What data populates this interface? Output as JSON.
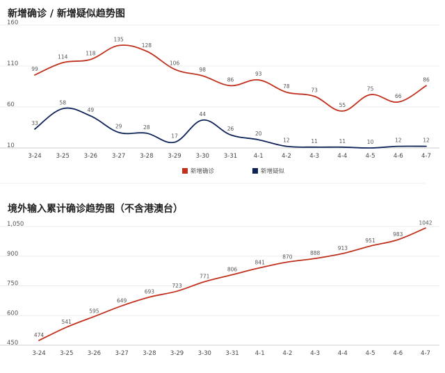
{
  "titles": {
    "chart1": "新增确诊 / 新增疑似趋势图",
    "chart2": "境外输入累计确诊趋势图（不含港澳台）"
  },
  "chart_data": [
    {
      "type": "line",
      "title": "新增确诊 / 新增疑似趋势图",
      "categories": [
        "3-24",
        "3-25",
        "3-26",
        "3-27",
        "3-28",
        "3-29",
        "3-30",
        "3-31",
        "4-1",
        "4-2",
        "4-3",
        "4-4",
        "4-5",
        "4-6",
        "4-7"
      ],
      "yticks": [
        "10",
        "60",
        "110",
        "160"
      ],
      "ylim": [
        10,
        160
      ],
      "grid": true,
      "legend_position": "bottom",
      "series": [
        {
          "name": "新增确诊",
          "color": "#c0301c",
          "values": [
            99,
            114,
            118,
            135,
            128,
            106,
            98,
            86,
            93,
            78,
            73,
            55,
            75,
            66,
            86
          ]
        },
        {
          "name": "新增疑似",
          "color": "#0d2257",
          "values": [
            33,
            58,
            49,
            29,
            28,
            17,
            44,
            26,
            20,
            12,
            11,
            11,
            10,
            12,
            12
          ]
        }
      ]
    },
    {
      "type": "line",
      "title": "境外输入累计确诊趋势图（不含港澳台）",
      "categories": [
        "3-24",
        "3-25",
        "3-26",
        "3-27",
        "3-28",
        "3-29",
        "3-30",
        "3-31",
        "4-1",
        "4-2",
        "4-3",
        "4-4",
        "4-5",
        "4-6",
        "4-7"
      ],
      "yticks": [
        "450",
        "600",
        "750",
        "900",
        "1,050"
      ],
      "ylim": [
        450,
        1050
      ],
      "grid": true,
      "series": [
        {
          "color": "#c0301c",
          "values": [
            474,
            541,
            595,
            649,
            693,
            723,
            771,
            806,
            841,
            870,
            888,
            913,
            951,
            983,
            1042
          ]
        }
      ]
    }
  ]
}
